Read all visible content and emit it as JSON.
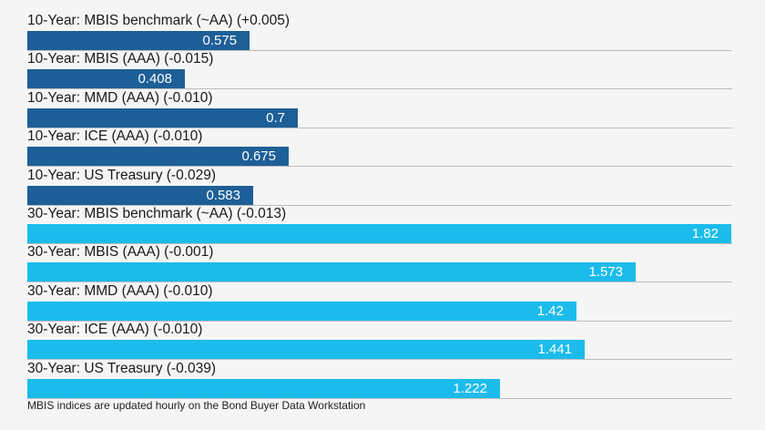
{
  "chart_data": {
    "type": "bar",
    "orientation": "horizontal",
    "categories": [
      "10-Year: MBIS benchmark (~AA) (+0.005)",
      "10-Year: MBIS (AAA) (-0.015)",
      "10-Year: MMD (AAA) (-0.010)",
      "10-Year: ICE (AAA) (-0.010)",
      "10-Year: US Treasury (-0.029)",
      "30-Year: MBIS benchmark (~AA) (-0.013)",
      "30-Year: MBIS (AAA) (-0.001)",
      "30-Year: MMD (AAA) (-0.010)",
      "30-Year: ICE (AAA) (-0.010)",
      "30-Year: US Treasury (-0.039)"
    ],
    "values": [
      0.575,
      0.408,
      0.7,
      0.675,
      0.583,
      1.82,
      1.573,
      1.42,
      1.441,
      1.222
    ],
    "value_labels": [
      "0.575",
      "0.408",
      "0.7",
      "0.675",
      "0.583",
      "1.82",
      "1.573",
      "1.42",
      "1.441",
      "1.222"
    ],
    "colors": [
      "#1d5f96",
      "#1d5f96",
      "#1d5f96",
      "#1d5f96",
      "#1d5f96",
      "#1bbcec",
      "#1bbcec",
      "#1bbcec",
      "#1bbcec",
      "#1bbcec"
    ],
    "xlim": [
      0,
      1.82
    ],
    "grid": false,
    "legend": "none",
    "footnote": "MBIS indices are updated hourly on the Bond Buyer Data Workstation"
  }
}
